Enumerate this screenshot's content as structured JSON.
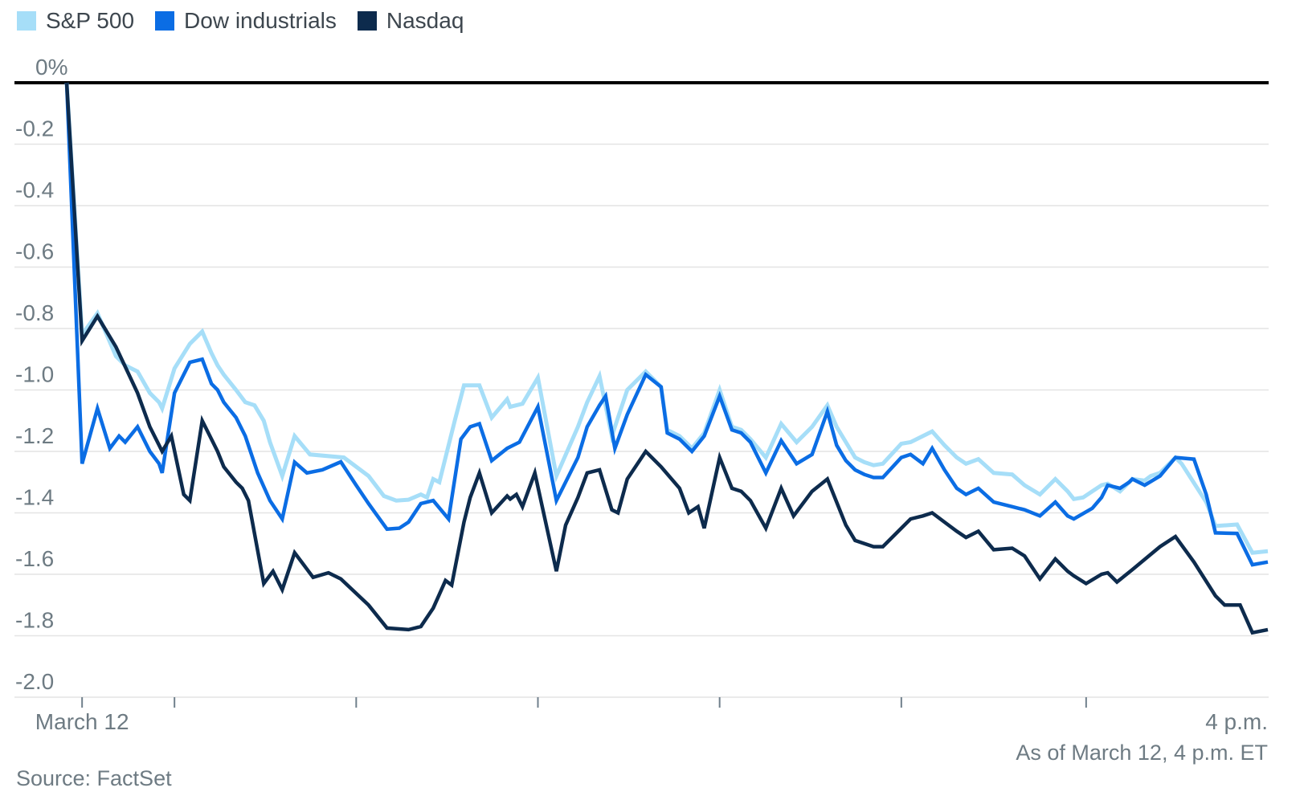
{
  "legend": {
    "items": [
      {
        "label": "S&P 500",
        "color": "#a6def8"
      },
      {
        "label": "Dow industrials",
        "color": "#0b6de4"
      },
      {
        "label": "Nasdaq",
        "color": "#0d2b4d"
      }
    ]
  },
  "footer": {
    "as_of": "As of March 12, 4 p.m. ET",
    "source": "Source: FactSet"
  },
  "chart_data": {
    "type": "line",
    "title": "",
    "xlabel": "",
    "ylabel": "",
    "grid": "horizontal",
    "legend_position": "top-left",
    "x_axis": {
      "unit": "minutes since 9:30 a.m. ET",
      "range": [
        0,
        390
      ],
      "start_label": "March 12",
      "end_label": "4 p.m.",
      "tick_minutes": [
        5,
        35,
        94,
        153,
        212,
        271,
        331
      ]
    },
    "y_axis": {
      "unit": "%",
      "range": [
        -2.0,
        0
      ],
      "tick_values": [
        0,
        -0.2,
        -0.4,
        -0.6,
        -0.8,
        -1.0,
        -1.2,
        -1.4,
        -1.6,
        -1.8,
        -2.0
      ],
      "tick_labels": [
        "0%",
        "-0.2",
        "-0.4",
        "-0.6",
        "-0.8",
        "-1.0",
        "-1.2",
        "-1.4",
        "-1.6",
        "-1.8",
        "-2.0"
      ]
    },
    "colors": {
      "zero_line": "#000000",
      "gridline": "#e4e4e4",
      "tick": "#70808c",
      "axis_text": "#6e7b83"
    },
    "series": [
      {
        "name": "S&P 500",
        "color": "#a6def8",
        "stroke_width": 5,
        "points": [
          [
            0,
            0
          ],
          [
            5,
            -0.82
          ],
          [
            10,
            -0.75
          ],
          [
            16,
            -0.89
          ],
          [
            19,
            -0.92
          ],
          [
            23,
            -0.94
          ],
          [
            27,
            -1.01
          ],
          [
            30,
            -1.04
          ],
          [
            31,
            -1.06
          ],
          [
            35,
            -0.93
          ],
          [
            40,
            -0.85
          ],
          [
            44,
            -0.81
          ],
          [
            47,
            -0.88
          ],
          [
            49,
            -0.92
          ],
          [
            51,
            -0.95
          ],
          [
            55,
            -1.0
          ],
          [
            58,
            -1.04
          ],
          [
            61,
            -1.05
          ],
          [
            64,
            -1.1
          ],
          [
            66,
            -1.17
          ],
          [
            70,
            -1.28
          ],
          [
            74,
            -1.15
          ],
          [
            79,
            -1.21
          ],
          [
            90,
            -1.22
          ],
          [
            98,
            -1.28
          ],
          [
            103,
            -1.345
          ],
          [
            107,
            -1.36
          ],
          [
            111,
            -1.357
          ],
          [
            115,
            -1.34
          ],
          [
            117,
            -1.35
          ],
          [
            119,
            -1.29
          ],
          [
            121,
            -1.3
          ],
          [
            126,
            -1.1
          ],
          [
            129,
            -0.985
          ],
          [
            134,
            -0.985
          ],
          [
            138,
            -1.09
          ],
          [
            143,
            -1.03
          ],
          [
            144,
            -1.055
          ],
          [
            148,
            -1.045
          ],
          [
            153,
            -0.96
          ],
          [
            159,
            -1.28
          ],
          [
            166,
            -1.12
          ],
          [
            169,
            -1.04
          ],
          [
            173,
            -0.955
          ],
          [
            177,
            -1.15
          ],
          [
            182,
            -1.0
          ],
          [
            188,
            -0.94
          ],
          [
            193,
            -0.99
          ],
          [
            195,
            -1.13
          ],
          [
            199,
            -1.15
          ],
          [
            203,
            -1.19
          ],
          [
            207,
            -1.14
          ],
          [
            212,
            -1.0
          ],
          [
            216,
            -1.12
          ],
          [
            219,
            -1.13
          ],
          [
            222,
            -1.16
          ],
          [
            227,
            -1.22
          ],
          [
            232,
            -1.11
          ],
          [
            237,
            -1.17
          ],
          [
            242,
            -1.12
          ],
          [
            247,
            -1.05
          ],
          [
            250,
            -1.12
          ],
          [
            253,
            -1.17
          ],
          [
            256,
            -1.22
          ],
          [
            259,
            -1.235
          ],
          [
            262,
            -1.245
          ],
          [
            265,
            -1.24
          ],
          [
            271,
            -1.175
          ],
          [
            274,
            -1.17
          ],
          [
            281,
            -1.135
          ],
          [
            285,
            -1.18
          ],
          [
            289,
            -1.22
          ],
          [
            292,
            -1.24
          ],
          [
            296,
            -1.225
          ],
          [
            301,
            -1.27
          ],
          [
            307,
            -1.275
          ],
          [
            311,
            -1.31
          ],
          [
            316,
            -1.34
          ],
          [
            321,
            -1.29
          ],
          [
            325,
            -1.33
          ],
          [
            327,
            -1.355
          ],
          [
            330,
            -1.35
          ],
          [
            333,
            -1.33
          ],
          [
            336,
            -1.31
          ],
          [
            338,
            -1.305
          ],
          [
            342,
            -1.33
          ],
          [
            346,
            -1.29
          ],
          [
            350,
            -1.295
          ],
          [
            352,
            -1.28
          ],
          [
            355,
            -1.27
          ],
          [
            360,
            -1.22
          ],
          [
            362,
            -1.24
          ],
          [
            370,
            -1.365
          ],
          [
            373,
            -1.443
          ],
          [
            380,
            -1.438
          ],
          [
            385,
            -1.53
          ],
          [
            390,
            -1.525
          ]
        ]
      },
      {
        "name": "Dow industrials",
        "color": "#0b6de4",
        "stroke_width": 4.5,
        "points": [
          [
            0,
            0
          ],
          [
            5,
            -1.24
          ],
          [
            10,
            -1.06
          ],
          [
            14,
            -1.19
          ],
          [
            17,
            -1.15
          ],
          [
            19,
            -1.17
          ],
          [
            23,
            -1.12
          ],
          [
            27,
            -1.2
          ],
          [
            30,
            -1.24
          ],
          [
            31,
            -1.27
          ],
          [
            35,
            -1.01
          ],
          [
            40,
            -0.91
          ],
          [
            44,
            -0.9
          ],
          [
            47,
            -0.98
          ],
          [
            49,
            -1.0
          ],
          [
            51,
            -1.04
          ],
          [
            55,
            -1.09
          ],
          [
            58,
            -1.15
          ],
          [
            62,
            -1.27
          ],
          [
            66,
            -1.36
          ],
          [
            70,
            -1.42
          ],
          [
            74,
            -1.235
          ],
          [
            78,
            -1.27
          ],
          [
            83,
            -1.26
          ],
          [
            89,
            -1.234
          ],
          [
            94,
            -1.31
          ],
          [
            98,
            -1.37
          ],
          [
            104,
            -1.453
          ],
          [
            108,
            -1.45
          ],
          [
            111,
            -1.43
          ],
          [
            115,
            -1.37
          ],
          [
            119,
            -1.36
          ],
          [
            124,
            -1.42
          ],
          [
            128,
            -1.16
          ],
          [
            131,
            -1.12
          ],
          [
            134,
            -1.11
          ],
          [
            138,
            -1.23
          ],
          [
            143,
            -1.19
          ],
          [
            147,
            -1.17
          ],
          [
            153,
            -1.055
          ],
          [
            159,
            -1.36
          ],
          [
            166,
            -1.22
          ],
          [
            169,
            -1.12
          ],
          [
            173,
            -1.05
          ],
          [
            175,
            -1.02
          ],
          [
            178,
            -1.19
          ],
          [
            182,
            -1.08
          ],
          [
            188,
            -0.95
          ],
          [
            193,
            -0.99
          ],
          [
            195,
            -1.14
          ],
          [
            199,
            -1.16
          ],
          [
            203,
            -1.2
          ],
          [
            207,
            -1.15
          ],
          [
            212,
            -1.02
          ],
          [
            216,
            -1.13
          ],
          [
            219,
            -1.14
          ],
          [
            222,
            -1.17
          ],
          [
            227,
            -1.27
          ],
          [
            232,
            -1.165
          ],
          [
            237,
            -1.24
          ],
          [
            242,
            -1.21
          ],
          [
            247,
            -1.07
          ],
          [
            250,
            -1.18
          ],
          [
            253,
            -1.23
          ],
          [
            256,
            -1.26
          ],
          [
            259,
            -1.275
          ],
          [
            262,
            -1.285
          ],
          [
            265,
            -1.285
          ],
          [
            271,
            -1.22
          ],
          [
            274,
            -1.21
          ],
          [
            278,
            -1.24
          ],
          [
            281,
            -1.19
          ],
          [
            285,
            -1.26
          ],
          [
            289,
            -1.32
          ],
          [
            292,
            -1.34
          ],
          [
            296,
            -1.32
          ],
          [
            301,
            -1.365
          ],
          [
            307,
            -1.38
          ],
          [
            311,
            -1.39
          ],
          [
            316,
            -1.41
          ],
          [
            321,
            -1.365
          ],
          [
            325,
            -1.41
          ],
          [
            327,
            -1.42
          ],
          [
            333,
            -1.385
          ],
          [
            336,
            -1.35
          ],
          [
            338,
            -1.31
          ],
          [
            342,
            -1.32
          ],
          [
            345,
            -1.3
          ],
          [
            346,
            -1.29
          ],
          [
            350,
            -1.31
          ],
          [
            355,
            -1.28
          ],
          [
            360,
            -1.22
          ],
          [
            366,
            -1.225
          ],
          [
            370,
            -1.34
          ],
          [
            373,
            -1.465
          ],
          [
            380,
            -1.467
          ],
          [
            385,
            -1.569
          ],
          [
            390,
            -1.56
          ]
        ]
      },
      {
        "name": "Nasdaq",
        "color": "#0d2b4d",
        "stroke_width": 4.5,
        "points": [
          [
            0,
            0
          ],
          [
            5,
            -0.84
          ],
          [
            10,
            -0.76
          ],
          [
            16,
            -0.86
          ],
          [
            23,
            -1.01
          ],
          [
            27,
            -1.12
          ],
          [
            30,
            -1.18
          ],
          [
            31,
            -1.2
          ],
          [
            34,
            -1.15
          ],
          [
            38,
            -1.34
          ],
          [
            40,
            -1.36
          ],
          [
            44,
            -1.1
          ],
          [
            47,
            -1.16
          ],
          [
            49,
            -1.2
          ],
          [
            51,
            -1.25
          ],
          [
            55,
            -1.3
          ],
          [
            57,
            -1.32
          ],
          [
            59,
            -1.36
          ],
          [
            64,
            -1.63
          ],
          [
            67,
            -1.59
          ],
          [
            70,
            -1.65
          ],
          [
            74,
            -1.53
          ],
          [
            80,
            -1.61
          ],
          [
            85,
            -1.595
          ],
          [
            89,
            -1.615
          ],
          [
            98,
            -1.7
          ],
          [
            104,
            -1.775
          ],
          [
            111,
            -1.78
          ],
          [
            115,
            -1.77
          ],
          [
            119,
            -1.71
          ],
          [
            123,
            -1.62
          ],
          [
            125,
            -1.635
          ],
          [
            129,
            -1.43
          ],
          [
            131,
            -1.35
          ],
          [
            134,
            -1.27
          ],
          [
            138,
            -1.4
          ],
          [
            143,
            -1.345
          ],
          [
            144,
            -1.355
          ],
          [
            146,
            -1.34
          ],
          [
            148,
            -1.38
          ],
          [
            152,
            -1.27
          ],
          [
            159,
            -1.59
          ],
          [
            162,
            -1.44
          ],
          [
            166,
            -1.35
          ],
          [
            169,
            -1.27
          ],
          [
            173,
            -1.26
          ],
          [
            177,
            -1.39
          ],
          [
            179,
            -1.4
          ],
          [
            182,
            -1.29
          ],
          [
            188,
            -1.2
          ],
          [
            193,
            -1.25
          ],
          [
            199,
            -1.32
          ],
          [
            202,
            -1.4
          ],
          [
            205,
            -1.38
          ],
          [
            207,
            -1.45
          ],
          [
            212,
            -1.22
          ],
          [
            216,
            -1.32
          ],
          [
            219,
            -1.33
          ],
          [
            222,
            -1.36
          ],
          [
            227,
            -1.45
          ],
          [
            232,
            -1.32
          ],
          [
            236,
            -1.41
          ],
          [
            242,
            -1.33
          ],
          [
            247,
            -1.29
          ],
          [
            253,
            -1.44
          ],
          [
            256,
            -1.49
          ],
          [
            259,
            -1.5
          ],
          [
            262,
            -1.51
          ],
          [
            265,
            -1.51
          ],
          [
            271,
            -1.45
          ],
          [
            274,
            -1.42
          ],
          [
            278,
            -1.41
          ],
          [
            281,
            -1.4
          ],
          [
            285,
            -1.43
          ],
          [
            289,
            -1.46
          ],
          [
            292,
            -1.48
          ],
          [
            296,
            -1.46
          ],
          [
            301,
            -1.52
          ],
          [
            307,
            -1.515
          ],
          [
            311,
            -1.54
          ],
          [
            316,
            -1.615
          ],
          [
            321,
            -1.55
          ],
          [
            325,
            -1.59
          ],
          [
            327,
            -1.605
          ],
          [
            331,
            -1.63
          ],
          [
            336,
            -1.6
          ],
          [
            338,
            -1.595
          ],
          [
            341,
            -1.625
          ],
          [
            346,
            -1.585
          ],
          [
            352,
            -1.535
          ],
          [
            355,
            -1.51
          ],
          [
            360,
            -1.477
          ],
          [
            366,
            -1.56
          ],
          [
            373,
            -1.67
          ],
          [
            376,
            -1.7
          ],
          [
            381,
            -1.7
          ],
          [
            385,
            -1.79
          ],
          [
            390,
            -1.78
          ]
        ]
      }
    ]
  }
}
